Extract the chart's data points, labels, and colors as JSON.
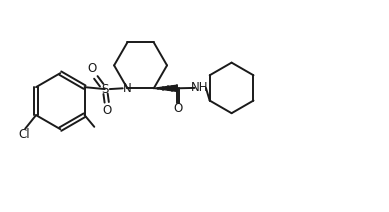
{
  "bg_color": "#ffffff",
  "line_color": "#1a1a1a",
  "line_width": 1.4,
  "fig_width": 3.89,
  "fig_height": 2.12,
  "dpi": 100,
  "xlim": [
    0,
    10
  ],
  "ylim": [
    0,
    5.45
  ]
}
